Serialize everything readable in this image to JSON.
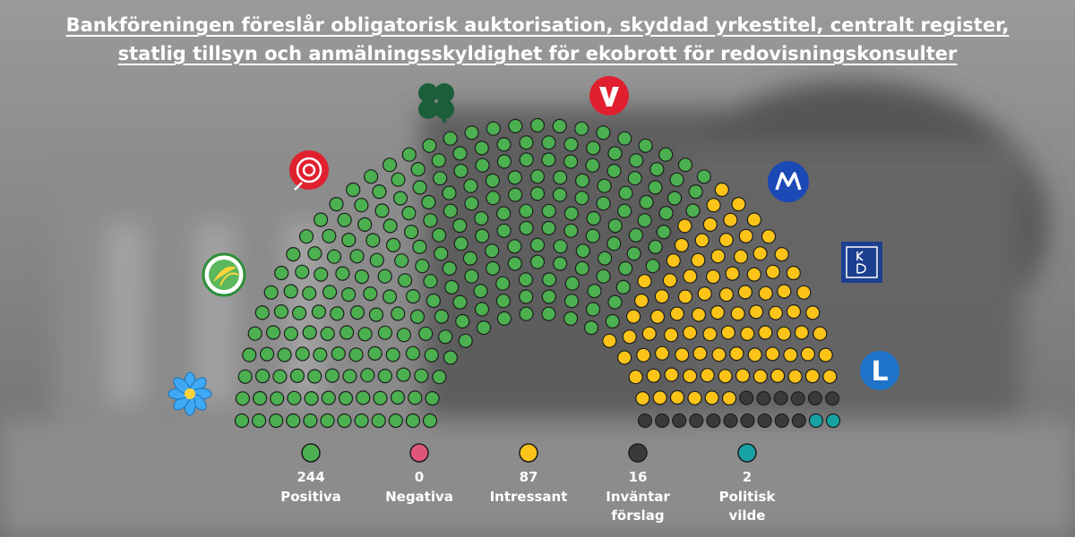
{
  "title_lines": [
    "Bankföreningen föreslår obligatorisk auktorisation, skyddad yrkestitel, centralt register,",
    "statlig tillsyn och anmälningsskyldighet för ekobrott för redovisningskonsulter"
  ],
  "chart_data": {
    "type": "parliament",
    "total_seats": 349,
    "categories": [
      {
        "count": "244",
        "label": "Positiva",
        "color": "#4caf50"
      },
      {
        "count": "0",
        "label": "Negativa",
        "color": "#e0557a"
      },
      {
        "count": "87",
        "label": "Intressant",
        "color": "#fcc419"
      },
      {
        "count": "16",
        "label": "Inväntar förslag",
        "color": "#3a3a3a"
      },
      {
        "count": "2",
        "label": "Politisk vilde",
        "color": "#17a2a4"
      }
    ],
    "parties": [
      {
        "icon": "sd-flower-icon",
        "seats": 72
      },
      {
        "icon": "mp-sunflower-icon",
        "seats": 18
      },
      {
        "icon": "s-rose-icon",
        "seats": 107
      },
      {
        "icon": "c-clover-icon",
        "seats": 24
      },
      {
        "icon": "v-logo-icon",
        "seats": 23
      },
      {
        "icon": "m-logo-icon",
        "seats": 68
      },
      {
        "icon": "kd-logo-icon",
        "seats": 19
      },
      {
        "icon": "l-logo-icon",
        "seats": 16,
        "text": "L"
      }
    ]
  }
}
